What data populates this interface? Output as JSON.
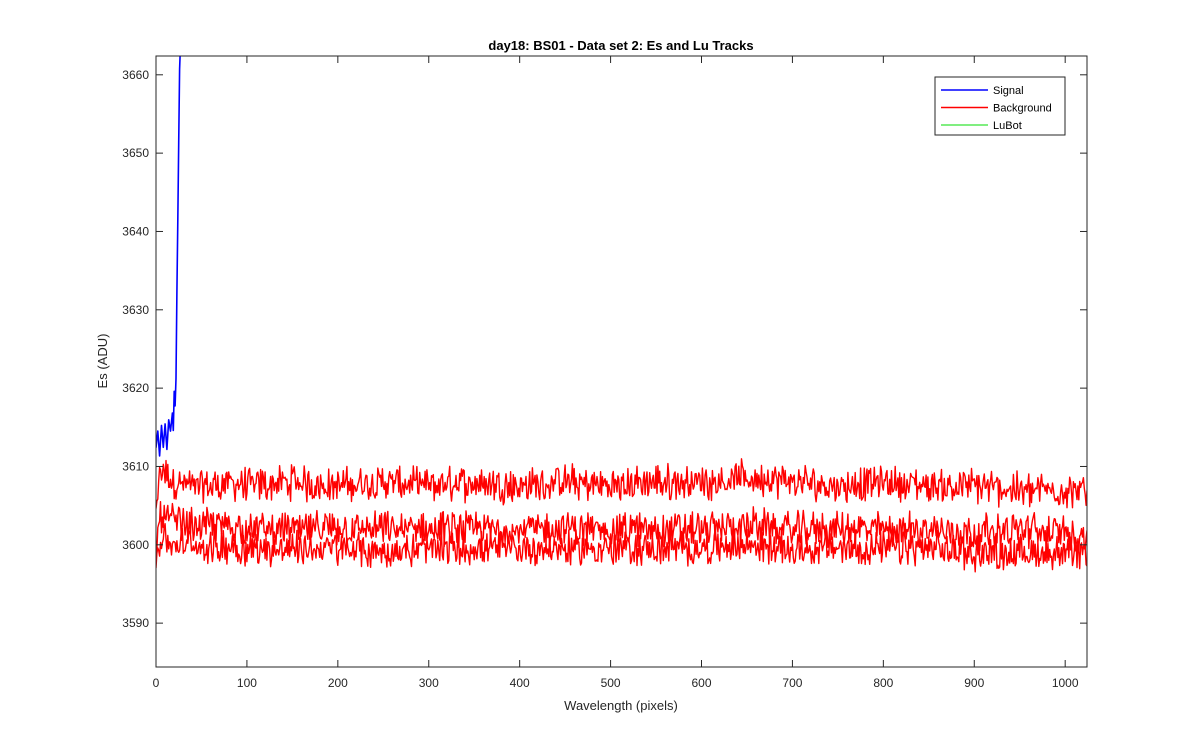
{
  "chart_data": {
    "type": "line",
    "title": "day18: BS01 - Data set 2: Es and Lu Tracks",
    "xlabel": "Wavelength (pixels)",
    "ylabel": "Es (ADU)",
    "xlim": [
      0,
      1024
    ],
    "ylim": [
      3584.4,
      3662.4
    ],
    "x_ticks": [
      0,
      100,
      200,
      300,
      400,
      500,
      600,
      700,
      800,
      900,
      1000
    ],
    "y_ticks": [
      3590,
      3600,
      3610,
      3620,
      3630,
      3640,
      3650,
      3660
    ],
    "grid": false,
    "legend_position": "top-right",
    "series": [
      {
        "name": "Signal",
        "color": "#0000ff",
        "x": [
          0,
          2,
          4,
          6,
          8,
          10,
          12,
          14,
          16,
          18,
          19,
          20,
          21,
          22,
          23,
          24,
          25,
          26,
          27
        ],
        "y": [
          3612,
          3615,
          3611,
          3614,
          3612,
          3615,
          3613,
          3615,
          3614,
          3616,
          3614,
          3620,
          3617,
          3622,
          3632,
          3642,
          3652,
          3660,
          3663
        ]
      },
      {
        "name": "Background",
        "color": "#ff0000",
        "x": [
          0,
          3,
          6,
          10,
          20,
          40,
          60,
          80,
          100,
          150,
          200,
          250,
          300,
          350,
          400,
          450,
          500,
          550,
          600,
          650,
          700,
          750,
          800,
          850,
          900,
          950,
          1000,
          1024
        ],
        "y": [
          3604,
          3608,
          3610,
          3609,
          3608,
          3607.5,
          3607.5,
          3608,
          3607.5,
          3608,
          3607.5,
          3608,
          3607.5,
          3608,
          3607.5,
          3608,
          3607.5,
          3608,
          3608,
          3608.5,
          3608,
          3607.5,
          3608,
          3607.5,
          3607.5,
          3607,
          3607,
          3606.5
        ]
      },
      {
        "name": "",
        "color": "#ff0000",
        "x": [
          0,
          3,
          6,
          10,
          20,
          40,
          60,
          80,
          100,
          150,
          200,
          250,
          300,
          350,
          400,
          450,
          500,
          550,
          600,
          650,
          700,
          750,
          800,
          850,
          900,
          950,
          1000,
          1024
        ],
        "y": [
          3600,
          3603,
          3604,
          3603.5,
          3603,
          3602.5,
          3602.5,
          3602.5,
          3602,
          3602,
          3602,
          3602,
          3602,
          3602,
          3602,
          3602,
          3602,
          3602,
          3602,
          3602.5,
          3602,
          3602,
          3602,
          3602,
          3601.5,
          3602,
          3601.5,
          3601
        ]
      },
      {
        "name": "",
        "color": "#ff0000",
        "x": [
          0,
          3,
          6,
          10,
          20,
          40,
          60,
          80,
          100,
          150,
          200,
          250,
          300,
          350,
          400,
          450,
          500,
          550,
          600,
          650,
          700,
          750,
          800,
          850,
          900,
          950,
          1000,
          1024
        ],
        "y": [
          3598,
          3600,
          3601,
          3600.5,
          3600,
          3600,
          3599.5,
          3600,
          3599.5,
          3599.5,
          3599.5,
          3599,
          3599.5,
          3599.5,
          3599.5,
          3599.5,
          3599.5,
          3599.5,
          3599.5,
          3600,
          3599.5,
          3599.5,
          3599.5,
          3599.5,
          3599,
          3599,
          3599,
          3598.5
        ]
      },
      {
        "name": "LuBot",
        "color": "#00dd00",
        "x": [],
        "y": []
      }
    ]
  }
}
